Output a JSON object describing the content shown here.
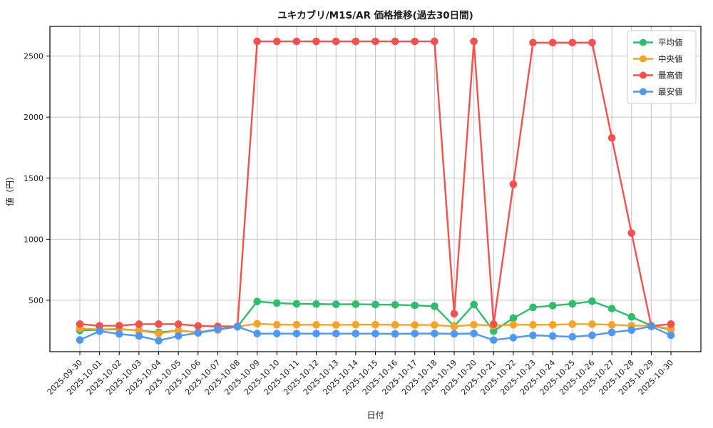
{
  "chart_data": {
    "type": "line",
    "title": "ユキカブリ/M1S/AR 価格推移(過去30日間)",
    "xlabel": "日付",
    "ylabel": "値（円）",
    "grid": true,
    "legend_position": "upper right",
    "ylim": [
      79,
      2743
    ],
    "yticks": [
      500,
      1000,
      1500,
      2000,
      2500
    ],
    "x": [
      "2025-09-30",
      "2025-10-01",
      "2025-10-02",
      "2025-10-03",
      "2025-10-04",
      "2025-10-05",
      "2025-10-06",
      "2025-10-07",
      "2025-10-08",
      "2025-10-09",
      "2025-10-10",
      "2025-10-11",
      "2025-10-12",
      "2025-10-13",
      "2025-10-14",
      "2025-10-15",
      "2025-10-16",
      "2025-10-17",
      "2025-10-18",
      "2025-10-19",
      "2025-10-20",
      "2025-10-21",
      "2025-10-22",
      "2025-10-23",
      "2025-10-24",
      "2025-10-25",
      "2025-10-26",
      "2025-10-27",
      "2025-10-28",
      "2025-10-29",
      "2025-10-30"
    ],
    "series": [
      {
        "key": "average",
        "name": "平均値",
        "color": "#2ebd6b",
        "values": [
          253,
          258,
          262,
          254,
          237,
          252,
          237,
          263,
          284,
          490,
          477,
          471,
          469,
          467,
          468,
          465,
          463,
          458,
          451,
          288,
          465,
          247,
          354,
          442,
          456,
          471,
          492,
          432,
          364,
          292,
          260
        ]
      },
      {
        "key": "median",
        "name": "中央値",
        "color": "#f7a325",
        "values": [
          270,
          261,
          266,
          251,
          228,
          251,
          237,
          256,
          284,
          308,
          300,
          300,
          299,
          298,
          300,
          300,
          299,
          298,
          298,
          285,
          300,
          293,
          299,
          299,
          299,
          304,
          304,
          299,
          292,
          292,
          266
        ]
      },
      {
        "key": "max",
        "name": "最高値",
        "color": "#f4514e",
        "values": [
          305,
          291,
          292,
          304,
          305,
          304,
          290,
          286,
          286,
          2620,
          2620,
          2620,
          2620,
          2620,
          2620,
          2620,
          2620,
          2620,
          2620,
          390,
          2620,
          305,
          1450,
          2610,
          2610,
          2610,
          2610,
          1830,
          1050,
          290,
          305
        ]
      },
      {
        "key": "min",
        "name": "最安値",
        "color": "#4f97f6",
        "values": [
          175,
          247,
          224,
          208,
          169,
          208,
          232,
          262,
          284,
          227,
          227,
          227,
          227,
          227,
          227,
          227,
          225,
          227,
          228,
          225,
          228,
          174,
          194,
          213,
          207,
          201,
          213,
          237,
          256,
          286,
          213
        ]
      }
    ]
  }
}
